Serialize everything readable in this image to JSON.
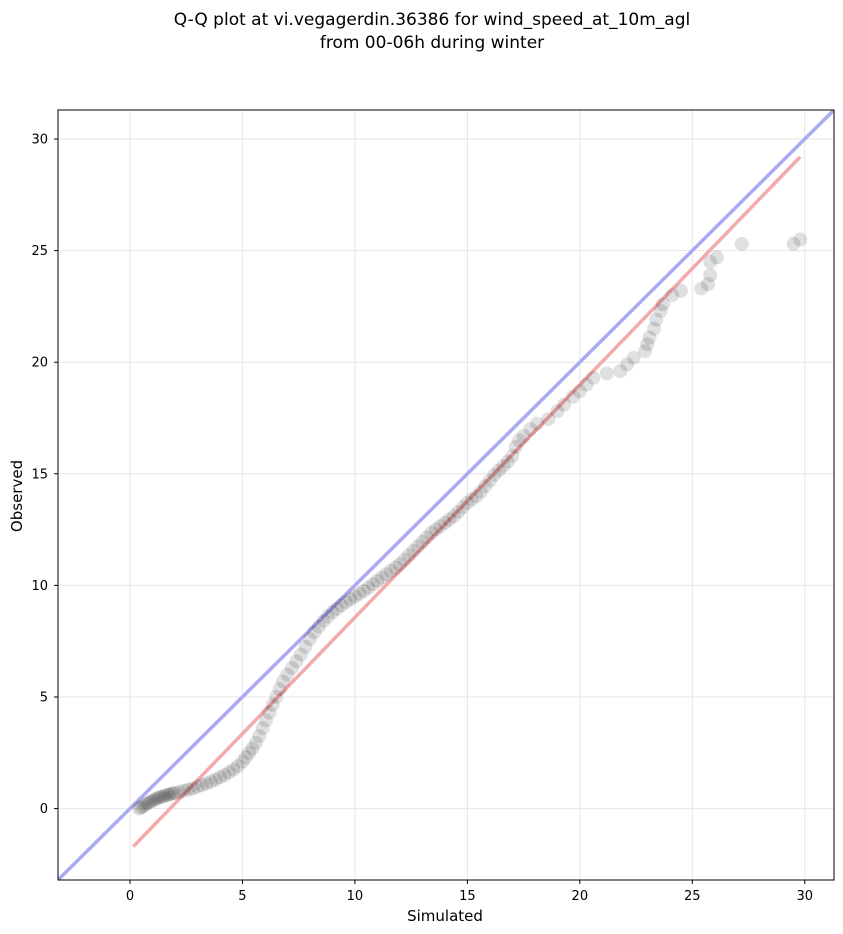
{
  "chart_data": {
    "type": "scatter",
    "title_line1": "Q-Q plot at vi.vegagerdin.36386 for wind_speed_at_10m_agl",
    "title_line2": "from 00-06h during winter",
    "xlabel": "Simulated",
    "ylabel": "Observed",
    "xlim": [
      -3.2,
      31.3
    ],
    "ylim": [
      -3.2,
      31.3
    ],
    "xticks": [
      0,
      5,
      10,
      15,
      20,
      25,
      30
    ],
    "yticks": [
      0,
      5,
      10,
      15,
      20,
      25,
      30
    ],
    "grid": true,
    "colors": {
      "points": "#000000",
      "identity_line": "#aaaaf4",
      "fit_line": "#f4aaaa",
      "grid": "#e6e6e6"
    },
    "reference_lines": [
      {
        "kind": "identity",
        "x": [
          -3.2,
          31.3
        ],
        "y": [
          -3.2,
          31.3
        ]
      },
      {
        "kind": "fit",
        "x": [
          0.15,
          29.8
        ],
        "y": [
          -1.7,
          29.2
        ]
      }
    ],
    "points": [
      [
        0.4,
        0.0
      ],
      [
        0.5,
        0.05
      ],
      [
        0.6,
        0.1
      ],
      [
        0.7,
        0.2
      ],
      [
        0.8,
        0.25
      ],
      [
        0.9,
        0.3
      ],
      [
        1.0,
        0.35
      ],
      [
        1.1,
        0.4
      ],
      [
        1.2,
        0.45
      ],
      [
        1.3,
        0.5
      ],
      [
        1.4,
        0.52
      ],
      [
        1.5,
        0.55
      ],
      [
        1.6,
        0.6
      ],
      [
        1.7,
        0.62
      ],
      [
        1.8,
        0.65
      ],
      [
        1.9,
        0.68
      ],
      [
        2.0,
        0.7
      ],
      [
        2.2,
        0.75
      ],
      [
        2.4,
        0.8
      ],
      [
        2.6,
        0.85
      ],
      [
        2.8,
        0.9
      ],
      [
        3.0,
        0.98
      ],
      [
        3.2,
        1.05
      ],
      [
        3.4,
        1.12
      ],
      [
        3.6,
        1.2
      ],
      [
        3.8,
        1.3
      ],
      [
        4.0,
        1.4
      ],
      [
        4.2,
        1.5
      ],
      [
        4.4,
        1.62
      ],
      [
        4.6,
        1.75
      ],
      [
        4.8,
        1.9
      ],
      [
        5.0,
        2.1
      ],
      [
        5.15,
        2.3
      ],
      [
        5.3,
        2.5
      ],
      [
        5.45,
        2.7
      ],
      [
        5.6,
        2.95
      ],
      [
        5.75,
        3.25
      ],
      [
        5.9,
        3.6
      ],
      [
        6.05,
        3.95
      ],
      [
        6.2,
        4.3
      ],
      [
        6.35,
        4.65
      ],
      [
        6.5,
        5.0
      ],
      [
        6.65,
        5.35
      ],
      [
        6.8,
        5.7
      ],
      [
        7.0,
        6.0
      ],
      [
        7.2,
        6.3
      ],
      [
        7.4,
        6.6
      ],
      [
        7.6,
        6.9
      ],
      [
        7.8,
        7.25
      ],
      [
        8.0,
        7.6
      ],
      [
        8.2,
        7.9
      ],
      [
        8.4,
        8.15
      ],
      [
        8.6,
        8.4
      ],
      [
        8.8,
        8.6
      ],
      [
        9.0,
        8.8
      ],
      [
        9.2,
        8.95
      ],
      [
        9.4,
        9.1
      ],
      [
        9.6,
        9.25
      ],
      [
        9.8,
        9.38
      ],
      [
        10.0,
        9.5
      ],
      [
        10.2,
        9.62
      ],
      [
        10.4,
        9.75
      ],
      [
        10.6,
        9.9
      ],
      [
        10.8,
        10.05
      ],
      [
        11.0,
        10.2
      ],
      [
        11.2,
        10.35
      ],
      [
        11.4,
        10.5
      ],
      [
        11.6,
        10.65
      ],
      [
        11.8,
        10.8
      ],
      [
        12.0,
        10.95
      ],
      [
        12.2,
        11.15
      ],
      [
        12.4,
        11.35
      ],
      [
        12.6,
        11.55
      ],
      [
        12.8,
        11.75
      ],
      [
        13.0,
        11.95
      ],
      [
        13.2,
        12.15
      ],
      [
        13.4,
        12.35
      ],
      [
        13.6,
        12.5
      ],
      [
        13.8,
        12.65
      ],
      [
        14.0,
        12.8
      ],
      [
        14.2,
        12.95
      ],
      [
        14.4,
        13.1
      ],
      [
        14.6,
        13.3
      ],
      [
        14.8,
        13.5
      ],
      [
        15.0,
        13.7
      ],
      [
        15.2,
        13.85
      ],
      [
        15.4,
        14.0
      ],
      [
        15.6,
        14.2
      ],
      [
        15.8,
        14.45
      ],
      [
        16.0,
        14.7
      ],
      [
        16.2,
        14.95
      ],
      [
        16.4,
        15.15
      ],
      [
        16.6,
        15.35
      ],
      [
        16.8,
        15.55
      ],
      [
        17.0,
        15.8
      ],
      [
        17.15,
        16.2
      ],
      [
        17.3,
        16.5
      ],
      [
        17.5,
        16.7
      ],
      [
        17.8,
        17.0
      ],
      [
        18.1,
        17.25
      ],
      [
        18.6,
        17.45
      ],
      [
        19.0,
        17.8
      ],
      [
        19.3,
        18.1
      ],
      [
        19.7,
        18.45
      ],
      [
        20.0,
        18.7
      ],
      [
        20.3,
        19.0
      ],
      [
        20.6,
        19.3
      ],
      [
        21.2,
        19.5
      ],
      [
        21.8,
        19.6
      ],
      [
        22.1,
        19.9
      ],
      [
        22.4,
        20.2
      ],
      [
        22.9,
        20.5
      ],
      [
        23.0,
        20.8
      ],
      [
        23.1,
        21.1
      ],
      [
        23.3,
        21.5
      ],
      [
        23.4,
        21.9
      ],
      [
        23.6,
        22.3
      ],
      [
        23.7,
        22.6
      ],
      [
        24.1,
        23.0
      ],
      [
        24.5,
        23.2
      ],
      [
        25.4,
        23.3
      ],
      [
        25.7,
        23.5
      ],
      [
        25.8,
        23.9
      ],
      [
        25.8,
        24.5
      ],
      [
        26.1,
        24.7
      ],
      [
        27.2,
        25.3
      ],
      [
        29.5,
        25.3
      ],
      [
        29.8,
        25.5
      ]
    ]
  }
}
